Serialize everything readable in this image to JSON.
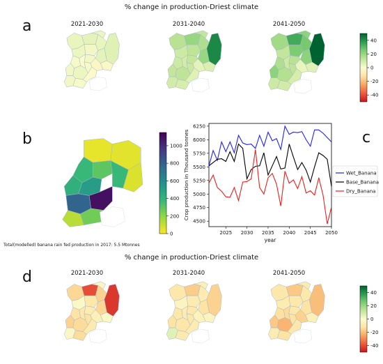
{
  "figure": {
    "top_title": "% change in production-Driest climate",
    "bottom_title": "% change in production-Driest climate",
    "panel_letters": {
      "a": "a",
      "b": "b",
      "c": "c",
      "d": "d"
    },
    "decade_titles": [
      "2021-2030",
      "2031-2040",
      "2041-2050"
    ],
    "note": "Total(modelled) banana rain fed production in 2017: 5.5 Mtonnes"
  },
  "colors": {
    "wet": "#1f1fff",
    "base": "#000000",
    "dry": "#ee1c1c",
    "diverging": [
      "#c8171e",
      "#ee5b3c",
      "#f8a661",
      "#fde3a3",
      "#fafccd",
      "#c2e59a",
      "#7ccd72",
      "#2b9e51",
      "#006231"
    ],
    "viridis": [
      "#fde725",
      "#90d743",
      "#35b779",
      "#21918c",
      "#31688e",
      "#443983",
      "#440154"
    ]
  },
  "chart_data": [
    {
      "type": "heatmap",
      "panel": "a",
      "title": "% change in production-Driest climate",
      "colorbar": {
        "ticks": [
          "40",
          "20",
          "0",
          "-20",
          "-40"
        ],
        "range": [
          -50,
          50
        ]
      },
      "maps": [
        {
          "title": "2021-2030",
          "region_values": [
            4,
            5,
            3,
            4,
            6,
            2,
            3,
            5,
            2,
            1,
            0,
            -3,
            -2,
            1,
            2,
            3,
            2,
            1,
            -1
          ]
        },
        {
          "title": "2031-2040",
          "region_values": [
            14,
            20,
            12,
            16,
            42,
            13,
            10,
            20,
            12,
            10,
            9,
            5,
            7,
            11,
            12,
            13,
            9,
            8,
            6
          ]
        },
        {
          "title": "2041-2050",
          "region_values": [
            18,
            34,
            22,
            26,
            50,
            25,
            12,
            22,
            14,
            16,
            10,
            4,
            6,
            13,
            22,
            15,
            10,
            9,
            8
          ]
        }
      ]
    },
    {
      "type": "heatmap",
      "panel": "b",
      "colorbar": {
        "ticks": [
          "1000",
          "800",
          "600",
          "400",
          "200",
          "0"
        ],
        "range": [
          0,
          1150
        ]
      },
      "region_values": [
        40,
        50,
        60,
        380,
        300,
        380,
        420,
        520,
        1100,
        780,
        120,
        260
      ]
    },
    {
      "type": "line",
      "panel": "c",
      "xlabel": "year",
      "ylabel": "Crop production in Thousand tonnes",
      "xlim": [
        2021,
        2050
      ],
      "ylim": [
        4400,
        6300
      ],
      "xticks": [
        "2025",
        "2030",
        "2035",
        "2040",
        "2045",
        "2050"
      ],
      "yticks": [
        "4500",
        "4750",
        "5000",
        "5250",
        "5500",
        "5750",
        "6000",
        "6250"
      ],
      "legend": "center-right",
      "x": [
        2021,
        2022,
        2023,
        2024,
        2025,
        2026,
        2027,
        2028,
        2029,
        2030,
        2031,
        2032,
        2033,
        2034,
        2035,
        2036,
        2037,
        2038,
        2039,
        2040,
        2041,
        2042,
        2043,
        2044,
        2045,
        2046,
        2047,
        2048,
        2049,
        2050
      ],
      "series": [
        {
          "name": "Wet_Banana",
          "color": "wet",
          "values": [
            5520,
            5800,
            5620,
            5960,
            5780,
            5960,
            5760,
            6080,
            5940,
            5910,
            5920,
            5840,
            6080,
            5880,
            6140,
            5980,
            6020,
            5820,
            6250,
            6100,
            6140,
            6130,
            6150,
            6000,
            5880,
            6180,
            6180,
            6120,
            6040,
            5960
          ]
        },
        {
          "name": "Base_Banana",
          "color": "base",
          "values": [
            5520,
            5580,
            5640,
            5650,
            5600,
            5780,
            5600,
            5920,
            5840,
            5280,
            5450,
            5510,
            5520,
            5760,
            5350,
            5520,
            5690,
            5460,
            5480,
            5920,
            5680,
            5450,
            5580,
            5440,
            5220,
            5500,
            5760,
            5710,
            5640,
            5140
          ]
        },
        {
          "name": "Dry_Banana",
          "color": "dry",
          "values": [
            5200,
            5350,
            5120,
            5050,
            4950,
            4940,
            5120,
            4880,
            5220,
            5230,
            5280,
            5820,
            5120,
            5000,
            5300,
            5380,
            5180,
            4780,
            5420,
            5200,
            5260,
            5100,
            5320,
            5020,
            5060,
            4980,
            5300,
            4980,
            4450,
            4760
          ]
        }
      ]
    },
    {
      "type": "heatmap",
      "panel": "d",
      "title": "% change in production-Driest climate",
      "colorbar": {
        "ticks": [
          "40",
          "20",
          "0",
          "-20",
          "-40"
        ],
        "range": [
          -50,
          50
        ]
      },
      "maps": [
        {
          "title": "2021-2030",
          "region_values": [
            -15,
            -40,
            -4,
            -16,
            -44,
            -10,
            -2,
            -15,
            -8,
            -12,
            -10,
            -6,
            -2,
            -12,
            -16,
            -14,
            -3,
            -14,
            -9
          ]
        },
        {
          "title": "2031-2040",
          "region_values": [
            -10,
            -17,
            -6,
            -8,
            -16,
            -8,
            -4,
            -12,
            -10,
            -10,
            -8,
            -5,
            -4,
            -10,
            -12,
            -11,
            6,
            -9,
            -8
          ]
        },
        {
          "title": "2041-2050",
          "region_values": [
            -10,
            -18,
            -8,
            -10,
            -20,
            -10,
            -8,
            -12,
            -10,
            -13,
            -14,
            -16,
            -6,
            -12,
            -18,
            -22,
            -8,
            -12,
            -10
          ]
        }
      ]
    }
  ]
}
